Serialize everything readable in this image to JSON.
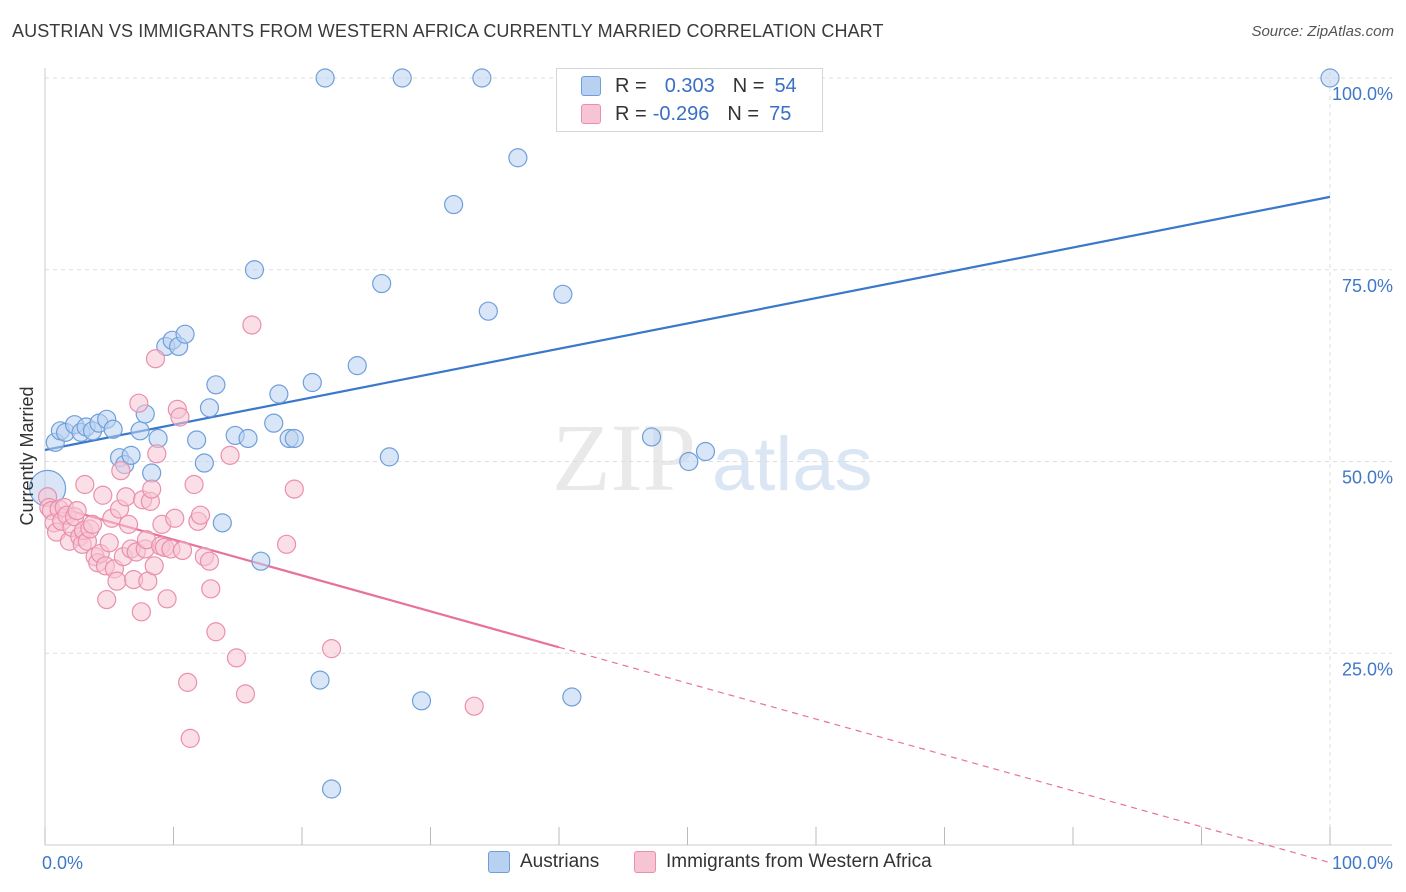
{
  "header": {
    "title": "AUSTRIAN VS IMMIGRANTS FROM WESTERN AFRICA CURRENTLY MARRIED CORRELATION CHART",
    "source": "Source: ZipAtlas.com"
  },
  "watermark": {
    "zip": "ZIP",
    "atlas": "atlas"
  },
  "stats_legend": {
    "rows": [
      {
        "r_label": "R =",
        "r_value": "0.303",
        "n_label": "N =",
        "n_value": "54",
        "color": "#5b8fd6"
      },
      {
        "r_label": "R =",
        "r_value": "-0.296",
        "n_label": "N =",
        "n_value": "75",
        "color": "#e87ca0"
      }
    ]
  },
  "colors": {
    "blue_fill": "#b9d1f0",
    "blue_stroke": "#6f9fdb",
    "blue_line": "#3a78cc",
    "pink_fill": "#f7c4d3",
    "pink_stroke": "#ea8fae",
    "pink_line": "#e8739a",
    "tick_label": "#3f78c8",
    "grid": "#dddddd"
  },
  "chart_data": {
    "type": "scatter",
    "xlabel": "",
    "ylabel": "Currently Married",
    "xlim": [
      0,
      100
    ],
    "ylim": [
      0,
      100
    ],
    "x_tick_labels": [
      "0.0%",
      "100.0%"
    ],
    "y_ticks": [
      {
        "value": 25,
        "label": "25.0%"
      },
      {
        "value": 50,
        "label": "50.0%"
      },
      {
        "value": 75,
        "label": "75.0%"
      },
      {
        "value": 100,
        "label": "100.0%"
      }
    ],
    "grid": true,
    "legend": "bottom",
    "series": [
      {
        "name": "Austrians",
        "trend": {
          "x": [
            0,
            100
          ],
          "y": [
            51.5,
            84.5
          ],
          "dashed_from": null
        },
        "points": [
          [
            0.2,
            46.5
          ],
          [
            0.8,
            52.5
          ],
          [
            1.2,
            54.0
          ],
          [
            1.6,
            53.8
          ],
          [
            2.3,
            54.8
          ],
          [
            2.8,
            53.8
          ],
          [
            3.2,
            54.5
          ],
          [
            3.7,
            54.0
          ],
          [
            4.2,
            55.0
          ],
          [
            4.8,
            55.5
          ],
          [
            5.3,
            54.2
          ],
          [
            5.8,
            50.5
          ],
          [
            6.2,
            49.6
          ],
          [
            6.7,
            50.8
          ],
          [
            7.4,
            54.0
          ],
          [
            7.8,
            56.2
          ],
          [
            8.3,
            48.5
          ],
          [
            8.8,
            53.0
          ],
          [
            9.4,
            65.0
          ],
          [
            9.9,
            65.8
          ],
          [
            10.4,
            65.0
          ],
          [
            10.9,
            66.6
          ],
          [
            11.8,
            52.8
          ],
          [
            12.4,
            49.8
          ],
          [
            12.8,
            57.0
          ],
          [
            13.3,
            60.0
          ],
          [
            13.8,
            42.0
          ],
          [
            14.8,
            53.4
          ],
          [
            15.8,
            53.0
          ],
          [
            16.3,
            75.0
          ],
          [
            16.8,
            37.0
          ],
          [
            17.8,
            55.0
          ],
          [
            18.2,
            58.8
          ],
          [
            19.0,
            53.0
          ],
          [
            19.4,
            53.0
          ],
          [
            20.8,
            60.3
          ],
          [
            21.4,
            21.5
          ],
          [
            21.8,
            100.0
          ],
          [
            22.3,
            7.3
          ],
          [
            24.3,
            62.5
          ],
          [
            26.2,
            73.2
          ],
          [
            26.8,
            50.6
          ],
          [
            27.8,
            100.0
          ],
          [
            29.3,
            18.8
          ],
          [
            31.8,
            83.5
          ],
          [
            34.0,
            100.0
          ],
          [
            34.5,
            69.6
          ],
          [
            36.8,
            89.6
          ],
          [
            40.3,
            71.8
          ],
          [
            41.0,
            19.3
          ],
          [
            47.2,
            53.2
          ],
          [
            50.1,
            50.0
          ],
          [
            51.4,
            51.3
          ],
          [
            100.0,
            100.0
          ]
        ]
      },
      {
        "name": "Immigrants from Western Africa",
        "trend": {
          "x": [
            0,
            100
          ],
          "y": [
            44.5,
            -2.3
          ],
          "dashed_from": 40.0
        },
        "points": [
          [
            0.2,
            45.4
          ],
          [
            0.3,
            44.0
          ],
          [
            0.5,
            43.6
          ],
          [
            0.7,
            42.0
          ],
          [
            0.9,
            40.8
          ],
          [
            1.1,
            43.8
          ],
          [
            1.3,
            42.2
          ],
          [
            1.5,
            44.0
          ],
          [
            1.7,
            43.0
          ],
          [
            1.9,
            39.6
          ],
          [
            2.1,
            41.4
          ],
          [
            2.3,
            42.8
          ],
          [
            2.5,
            43.6
          ],
          [
            2.7,
            40.2
          ],
          [
            2.9,
            39.2
          ],
          [
            3.0,
            41.0
          ],
          [
            3.1,
            47.0
          ],
          [
            3.3,
            39.6
          ],
          [
            3.5,
            41.2
          ],
          [
            3.7,
            41.8
          ],
          [
            3.9,
            37.6
          ],
          [
            4.1,
            36.8
          ],
          [
            4.3,
            38.0
          ],
          [
            4.5,
            45.6
          ],
          [
            4.7,
            36.4
          ],
          [
            4.8,
            32.0
          ],
          [
            5.0,
            39.4
          ],
          [
            5.2,
            42.6
          ],
          [
            5.4,
            36.0
          ],
          [
            5.6,
            34.4
          ],
          [
            5.8,
            43.8
          ],
          [
            5.9,
            48.8
          ],
          [
            6.1,
            37.6
          ],
          [
            6.3,
            45.4
          ],
          [
            6.5,
            41.8
          ],
          [
            6.7,
            38.6
          ],
          [
            6.9,
            34.6
          ],
          [
            7.1,
            38.2
          ],
          [
            7.3,
            57.6
          ],
          [
            7.5,
            30.4
          ],
          [
            7.6,
            45.0
          ],
          [
            7.8,
            38.6
          ],
          [
            7.9,
            39.8
          ],
          [
            8.0,
            34.4
          ],
          [
            8.2,
            44.8
          ],
          [
            8.3,
            46.4
          ],
          [
            8.5,
            36.4
          ],
          [
            8.6,
            63.4
          ],
          [
            8.7,
            51.0
          ],
          [
            9.0,
            39.0
          ],
          [
            9.1,
            41.8
          ],
          [
            9.3,
            38.8
          ],
          [
            9.5,
            32.1
          ],
          [
            9.8,
            38.6
          ],
          [
            10.1,
            42.6
          ],
          [
            10.3,
            56.8
          ],
          [
            10.5,
            55.8
          ],
          [
            10.7,
            38.4
          ],
          [
            11.1,
            21.2
          ],
          [
            11.3,
            13.9
          ],
          [
            11.6,
            47.0
          ],
          [
            11.9,
            42.2
          ],
          [
            12.1,
            43.0
          ],
          [
            12.4,
            37.6
          ],
          [
            12.8,
            37.0
          ],
          [
            12.9,
            33.4
          ],
          [
            13.3,
            27.8
          ],
          [
            14.4,
            50.8
          ],
          [
            14.9,
            24.4
          ],
          [
            15.6,
            19.7
          ],
          [
            16.1,
            67.8
          ],
          [
            18.8,
            39.2
          ],
          [
            19.4,
            46.4
          ],
          [
            22.3,
            25.6
          ],
          [
            33.4,
            18.1
          ]
        ]
      }
    ]
  }
}
